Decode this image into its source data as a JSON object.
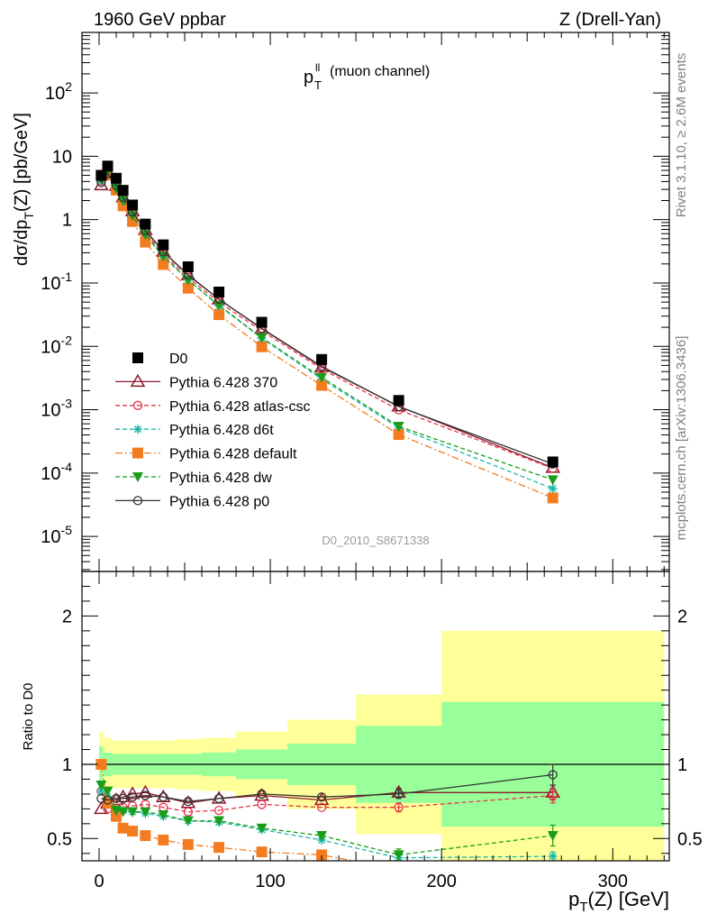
{
  "header": {
    "left": "1960 GeV ppbar",
    "right": "Z (Drell-Yan)"
  },
  "side": {
    "rivet": "Rivet 3.1.10, ≥ 2.6M events",
    "mcplots": "mcplots.cern.ch [arXiv:1306.3436]"
  },
  "chart_data": {
    "type": "line",
    "title_main": "p",
    "title_sup": "ll",
    "title_sub": "T",
    "title_rest": "(muon channel)",
    "watermark": "D0_2010_S8671338",
    "ylabel": "dσ/dp_T(Z) [pb/GeV]",
    "ylabel_parts": [
      "dσ/dp",
      "T",
      "(Z) [pb/GeV]"
    ],
    "ratio_ylabel": "Ratio to D0",
    "xlabel_parts": [
      "p",
      "T",
      "(Z) [GeV]"
    ],
    "x_range": [
      -10,
      333
    ],
    "y_scale": "log",
    "y_range": [
      2.8e-06,
      900
    ],
    "ratio_range": [
      0.35,
      2.3
    ],
    "x_ticks": [
      "0",
      "100",
      "200",
      "300"
    ],
    "y_ticks": [
      "10-5",
      "10-4",
      "10-3",
      "10-2",
      "10-1",
      "1",
      "10",
      "102"
    ],
    "ratio_ticks": [
      "0.5",
      "1",
      "2"
    ],
    "x": [
      1.25,
      5,
      10,
      14,
      19.5,
      27,
      37.5,
      52,
      70,
      95,
      130,
      175,
      265
    ],
    "bin_edges": [
      0,
      2.5,
      7.5,
      12.5,
      17.5,
      22.5,
      32.5,
      45,
      60,
      80,
      110,
      150,
      200,
      330
    ],
    "band_inner": [
      0.12,
      0.08,
      0.07,
      0.07,
      0.07,
      0.07,
      0.07,
      0.07,
      0.08,
      0.1,
      0.14,
      0.26,
      0.42
    ],
    "band_outer": [
      0.22,
      0.18,
      0.16,
      0.16,
      0.16,
      0.16,
      0.16,
      0.17,
      0.18,
      0.22,
      0.3,
      0.47,
      0.9
    ],
    "data": {
      "name": "D0",
      "values": [
        5.0,
        7.0,
        4.5,
        2.9,
        1.7,
        0.85,
        0.4,
        0.18,
        0.072,
        0.024,
        0.0062,
        0.0014,
        0.00015
      ]
    },
    "series": [
      {
        "name": "Pythia 6.428 370",
        "color": "#8b1a2e",
        "dash": "",
        "marker": "triangle-open",
        "ratio": [
          0.7,
          0.74,
          0.76,
          0.78,
          0.8,
          0.81,
          0.78,
          0.74,
          0.77,
          0.79,
          0.76,
          0.81,
          0.81
        ],
        "ratio_err": [
          0,
          0,
          0,
          0,
          0,
          0,
          0,
          0,
          0,
          0,
          0,
          0.03,
          0.05
        ]
      },
      {
        "name": "Pythia 6.428 atlas-csc",
        "color": "#e8334a",
        "dash": "5,3",
        "marker": "circle-open",
        "ratio": [
          0.82,
          0.7,
          0.7,
          0.71,
          0.72,
          0.73,
          0.71,
          0.68,
          0.69,
          0.73,
          0.71,
          0.71,
          0.79
        ],
        "ratio_err": [
          0,
          0,
          0,
          0,
          0,
          0,
          0,
          0,
          0,
          0,
          0,
          0.03,
          0.05
        ]
      },
      {
        "name": "Pythia 6.428 d6t",
        "color": "#1db8a8",
        "dash": "5,3",
        "marker": "star",
        "ratio": [
          0.82,
          0.78,
          0.69,
          0.69,
          0.68,
          0.67,
          0.65,
          0.62,
          0.61,
          0.56,
          0.49,
          0.37,
          0.38
        ],
        "ratio_err": [
          0,
          0,
          0,
          0,
          0,
          0,
          0,
          0,
          0,
          0,
          0,
          0.03,
          0.03
        ]
      },
      {
        "name": "Pythia 6.428 default",
        "color": "#f47c20",
        "dash": "8,3,2,3",
        "marker": "square-filled",
        "ratio": [
          1.0,
          0.74,
          0.65,
          0.57,
          0.55,
          0.52,
          0.49,
          0.46,
          0.44,
          0.41,
          0.39,
          0.29,
          0.27
        ],
        "ratio_err": [
          0,
          0,
          0,
          0,
          0,
          0,
          0,
          0,
          0,
          0,
          0,
          0.03,
          0.03
        ]
      },
      {
        "name": "Pythia 6.428 dw",
        "color": "#1a9e1a",
        "dash": "5,3",
        "marker": "triangle-down-filled",
        "ratio": [
          0.86,
          0.82,
          0.69,
          0.68,
          0.68,
          0.68,
          0.66,
          0.62,
          0.62,
          0.57,
          0.52,
          0.39,
          0.52
        ],
        "ratio_err": [
          0,
          0,
          0,
          0,
          0,
          0,
          0,
          0,
          0,
          0,
          0.02,
          0.04,
          0.07
        ]
      },
      {
        "name": "Pythia 6.428 p0",
        "color": "#333333",
        "dash": "",
        "marker": "circle-open",
        "ratio": [
          0.77,
          0.76,
          0.77,
          0.77,
          0.78,
          0.79,
          0.78,
          0.75,
          0.77,
          0.8,
          0.78,
          0.8,
          0.93
        ],
        "ratio_err": [
          0,
          0,
          0,
          0,
          0,
          0,
          0,
          0,
          0,
          0,
          0,
          0.03,
          0.07
        ]
      }
    ]
  }
}
